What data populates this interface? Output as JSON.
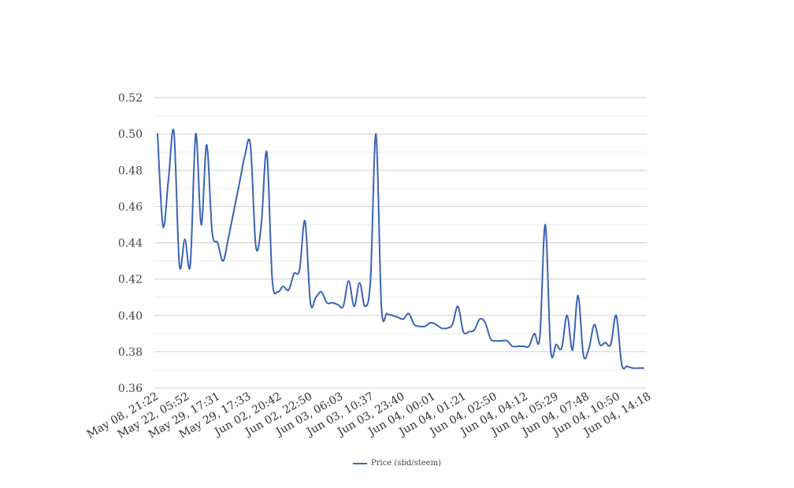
{
  "chart_data": {
    "type": "line",
    "title": "",
    "xlabel": "",
    "ylabel": "",
    "ylim": [
      0.36,
      0.52
    ],
    "yticks": [
      "0.36",
      "0.38",
      "0.40",
      "0.42",
      "0.44",
      "0.46",
      "0.48",
      "0.50",
      "0.52"
    ],
    "grid": true,
    "legend_position": "bottom",
    "line_color": "#3a64b5",
    "x_tick_labels": [
      "May 08, 21:22",
      "May 22, 05:52",
      "May 29, 17:31",
      "May 29, 17:33",
      "Jun 02, 20:42",
      "Jun 02, 22:50",
      "Jun 03, 06:03",
      "Jun 03, 10:37",
      "Jun 03, 23:40",
      "Jun 04, 00:01",
      "Jun 04, 01:21",
      "Jun 04, 02:50",
      "Jun 04, 04:12",
      "Jun 04, 05:29",
      "Jun 04, 07:48",
      "Jun 04, 10:50",
      "Jun 04, 14:18"
    ],
    "series": [
      {
        "name": "Price (sbd/steem)",
        "values": [
          0.5,
          0.449,
          0.475,
          0.501,
          0.428,
          0.442,
          0.428,
          0.5,
          0.45,
          0.494,
          0.446,
          0.44,
          0.43,
          0.443,
          0.458,
          0.473,
          0.488,
          0.494,
          0.438,
          0.45,
          0.49,
          0.42,
          0.413,
          0.416,
          0.414,
          0.423,
          0.425,
          0.452,
          0.407,
          0.41,
          0.413,
          0.407,
          0.407,
          0.406,
          0.405,
          0.419,
          0.405,
          0.418,
          0.405,
          0.42,
          0.5,
          0.405,
          0.401,
          0.4,
          0.399,
          0.398,
          0.401,
          0.395,
          0.394,
          0.394,
          0.396,
          0.395,
          0.393,
          0.393,
          0.395,
          0.405,
          0.391,
          0.391,
          0.392,
          0.398,
          0.396,
          0.387,
          0.386,
          0.386,
          0.386,
          0.383,
          0.383,
          0.383,
          0.383,
          0.39,
          0.388,
          0.45,
          0.381,
          0.384,
          0.382,
          0.4,
          0.381,
          0.411,
          0.378,
          0.382,
          0.395,
          0.384,
          0.385,
          0.384,
          0.4,
          0.373,
          0.372,
          0.371,
          0.371,
          0.371
        ]
      }
    ]
  }
}
